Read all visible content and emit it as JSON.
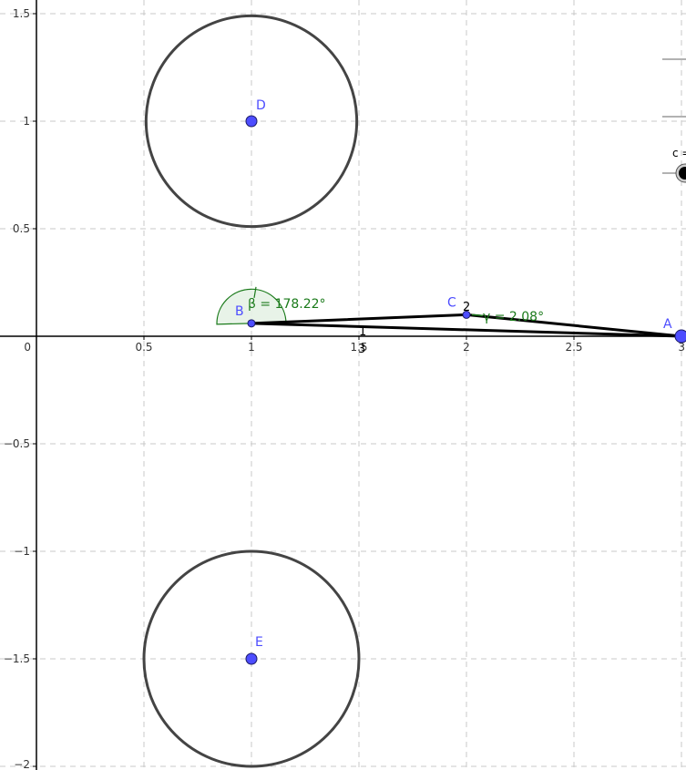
{
  "app": {
    "view": "graphics"
  },
  "axes": {
    "x_range": [
      0,
      3
    ],
    "y_range": [
      -2,
      1.5
    ],
    "x_ticks": [
      {
        "value": 0,
        "label": "0"
      },
      {
        "value": 0.5,
        "label": "0.5"
      },
      {
        "value": 1,
        "label": "1"
      },
      {
        "value": 1.5,
        "label": "1.5"
      },
      {
        "value": 2,
        "label": "2"
      },
      {
        "value": 2.5,
        "label": "2.5"
      },
      {
        "value": 3,
        "label": "3"
      }
    ],
    "y_ticks": [
      {
        "value": 1.5,
        "label": "1.5"
      },
      {
        "value": 1,
        "label": "1"
      },
      {
        "value": 0.5,
        "label": "0.5"
      },
      {
        "value": -0.5,
        "label": "−0.5"
      },
      {
        "value": -1,
        "label": "−1"
      },
      {
        "value": -1.5,
        "label": "−1.5"
      },
      {
        "value": -2,
        "label": "−2"
      }
    ],
    "grid": true,
    "grid_style": "dashed",
    "axis_color": "#000000",
    "grid_color": "#c8c8c8"
  },
  "points": [
    {
      "id": "A",
      "label": "A",
      "x": 3,
      "y": 0,
      "large": true
    },
    {
      "id": "B",
      "label": "B",
      "x": 1,
      "y": 0.06,
      "large": false
    },
    {
      "id": "C",
      "label": "C",
      "x": 2,
      "y": 0.1,
      "large": false
    },
    {
      "id": "D",
      "label": "D",
      "x": 1,
      "y": 1,
      "large": false
    },
    {
      "id": "E",
      "label": "E",
      "x": 1,
      "y": -1.5,
      "large": false
    }
  ],
  "circles": [
    {
      "id": "circle-d",
      "cx": 1,
      "cy": 1,
      "r": 0.49
    },
    {
      "id": "circle-e",
      "cx": 1,
      "cy": -1.5,
      "r": 0.5
    }
  ],
  "segments": [
    {
      "id": "ab",
      "from": "A",
      "to": "B",
      "label": "1"
    },
    {
      "id": "bc",
      "from": "B",
      "to": "C",
      "label": "2"
    },
    {
      "id": "ca",
      "from": "C",
      "to": "A",
      "label": ""
    }
  ],
  "segment_labels": {
    "ab": "1",
    "bc": "2",
    "extra": "3"
  },
  "angles": {
    "beta": {
      "label": "β = 178.22°",
      "vertex": "B"
    },
    "gamma": {
      "label": "γ = 2.08°",
      "vertex": "C"
    }
  },
  "slider": {
    "label": "c ="
  },
  "colors": {
    "point_fill": "#4d4dff",
    "circle_stroke": "#444444",
    "angle_fill": "#e6f2e6",
    "angle_stroke": "#1a7a1a",
    "segment": "#000000"
  }
}
